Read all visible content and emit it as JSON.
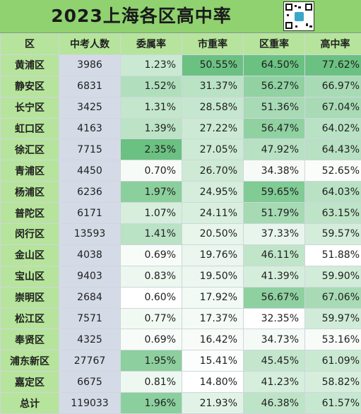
{
  "title": "2023上海各区高中率",
  "headers": [
    "区",
    "中考人数",
    "委属率",
    "市重率",
    "区重率",
    "高中率"
  ],
  "rows": [
    [
      "黄浦区",
      "3986",
      "1.23%",
      "50.55%",
      "64.50%",
      "77.62%"
    ],
    [
      "静安区",
      "6831",
      "1.52%",
      "31.37%",
      "56.27%",
      "66.97%"
    ],
    [
      "长宁区",
      "3425",
      "1.31%",
      "28.58%",
      "51.36%",
      "67.04%"
    ],
    [
      "虹口区",
      "4163",
      "1.39%",
      "27.22%",
      "56.47%",
      "64.02%"
    ],
    [
      "徐汇区",
      "7715",
      "2.35%",
      "27.05%",
      "47.92%",
      "64.43%"
    ],
    [
      "青浦区",
      "4450",
      "0.70%",
      "26.70%",
      "34.38%",
      "52.65%"
    ],
    [
      "杨浦区",
      "6236",
      "1.97%",
      "24.95%",
      "59.65%",
      "64.03%"
    ],
    [
      "普陀区",
      "6171",
      "1.07%",
      "24.11%",
      "51.79%",
      "63.15%"
    ],
    [
      "闵行区",
      "13593",
      "1.41%",
      "20.50%",
      "37.33%",
      "59.57%"
    ],
    [
      "金山区",
      "4038",
      "0.69%",
      "19.76%",
      "46.11%",
      "51.88%"
    ],
    [
      "宝山区",
      "9403",
      "0.83%",
      "19.50%",
      "41.39%",
      "59.90%"
    ],
    [
      "崇明区",
      "2684",
      "0.60%",
      "17.92%",
      "56.67%",
      "67.06%"
    ],
    [
      "松江区",
      "7571",
      "0.77%",
      "17.37%",
      "32.35%",
      "59.97%"
    ],
    [
      "奉贤区",
      "4325",
      "0.69%",
      "16.42%",
      "34.73%",
      "53.16%"
    ],
    [
      "浦东新区",
      "27767",
      "1.95%",
      "15.41%",
      "45.45%",
      "61.09%"
    ],
    [
      "嘉定区",
      "6675",
      "0.81%",
      "14.80%",
      "41.23%",
      "58.82%"
    ],
    [
      "总计",
      "119033",
      "1.96%",
      "21.93%",
      "46.38%",
      "61.57%"
    ]
  ],
  "colors": {
    "header_green": "#b6e49c",
    "title_green": "#8fd26f",
    "count_gray_blue": "#d4dbe6",
    "heat_low": "#ffffff",
    "heat_high": "#63be7b"
  },
  "icons": {
    "qr": "qr-code-icon"
  }
}
